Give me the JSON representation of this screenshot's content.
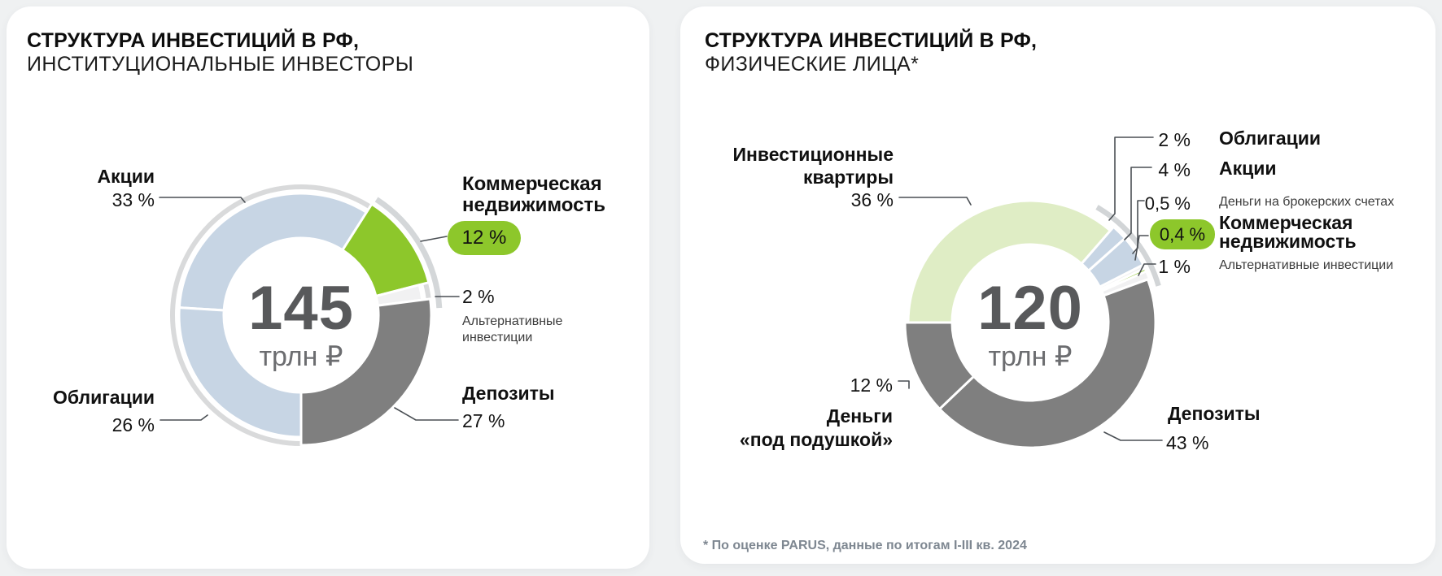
{
  "colors": {
    "background": "#eff1f2",
    "card": "#ffffff",
    "light_blue": "#c7d5e4",
    "green": "#8dc72b",
    "pale_green": "#dfedc5",
    "dark_grey": "#7f7f7f",
    "off_white": "#f1f1f2",
    "ring": "#d9dadb",
    "leader": "#4a4f54",
    "center_number": "#58595b",
    "center_unit": "#6c6d70"
  },
  "left": {
    "title1": "СТРУКТУРА ИНВЕСТИЦИЙ В РФ,",
    "title2": "ИНСТИТУЦИОНАЛЬНЫЕ ИНВЕСТОРЫ",
    "center": {
      "value": "145",
      "unit": "трлн ₽"
    },
    "callouts": {
      "akcii": {
        "name": "Акции",
        "pct": "33 %"
      },
      "kn": {
        "name1": "Коммерческая",
        "name2": "недвижимость",
        "pct": "12 %"
      },
      "alt": {
        "pct": "2 %",
        "name1": "Альтернативные",
        "name2": "инвестиции"
      },
      "depozity": {
        "name": "Депозиты",
        "pct": "27 %"
      },
      "obligacii": {
        "name": "Облигации",
        "pct": "26 %"
      }
    }
  },
  "right": {
    "title1": "СТРУКТУРА ИНВЕСТИЦИЙ В РФ,",
    "title2": "ФИЗИЧЕСКИЕ ЛИЦА*",
    "center": {
      "value": "120",
      "unit": "трлн ₽"
    },
    "callouts": {
      "kvartiry": {
        "name1": "Инвестиционные",
        "name2": "квартиры",
        "pct": "36 %"
      },
      "obligacii": {
        "name": "Облигации",
        "pct": "2 %"
      },
      "akcii": {
        "name": "Акции",
        "pct": "4 %"
      },
      "broker": {
        "name": "Деньги на брокерских счетах",
        "pct": "0,5 %"
      },
      "kn": {
        "name1": "Коммерческая",
        "name2": "недвижимость",
        "pct": "0,4 %"
      },
      "alt": {
        "name": "Альтернативные инвестиции",
        "pct": "1 %"
      },
      "depozity": {
        "name": "Депозиты",
        "pct": "43 %"
      },
      "podushka": {
        "name1": "Деньги",
        "name2": "«под подушкой»",
        "pct": "12 %"
      }
    },
    "footnote": "* По оценке PARUS, данные по итогам I-III кв. 2024"
  },
  "chart_data": [
    {
      "type": "pie",
      "variant": "donut",
      "title": "СТРУКТУРА ИНВЕСТИЦИЙ В РФ, ИНСТИТУЦИОНАЛЬНЫЕ ИНВЕСТОРЫ",
      "center_label": "145 трлн ₽",
      "total_value": "145 трлн ₽",
      "start_angle_deg": 273.6,
      "clockwise": true,
      "segments": [
        {
          "label": "Акции",
          "pct": 33,
          "color": "#c7d5e4"
        },
        {
          "label": "Коммерческая недвижимость",
          "pct": 12,
          "color": "#8dc72b",
          "highlighted": true
        },
        {
          "label": "Альтернативные инвестиции",
          "pct": 2,
          "color": "#f1f1f2"
        },
        {
          "label": "Депозиты",
          "pct": 27,
          "color": "#7f7f7f"
        },
        {
          "label": "Облигации",
          "pct": 26,
          "color": "#c7d5e4"
        }
      ]
    },
    {
      "type": "pie",
      "variant": "donut",
      "title": "СТРУКТУРА ИНВЕСТИЦИЙ В РФ, ФИЗИЧЕСКИЕ ЛИЦА*",
      "center_label": "120 трлн ₽",
      "total_value": "120 трлн ₽",
      "start_angle_deg": 270,
      "clockwise": true,
      "footnote": "* По оценке PARUS, данные по итогам I-III кв. 2024",
      "segments": [
        {
          "label": "Инвестиционные квартиры",
          "pct": 36,
          "color": "#dfedc5"
        },
        {
          "label": "Облигации",
          "pct": 2,
          "color": "#c7d5e4"
        },
        {
          "label": "Акции",
          "pct": 4,
          "color": "#c7d5e4"
        },
        {
          "label": "Деньги на брокерских счетах",
          "pct": 0.5,
          "color": "#f1f1f2"
        },
        {
          "label": "Коммерческая недвижимость",
          "pct": 0.4,
          "color": "#8dc72b",
          "highlighted": true
        },
        {
          "label": "Альтернативные инвестиции",
          "pct": 1,
          "color": "#f1f1f2"
        },
        {
          "label": "Депозиты",
          "pct": 43,
          "color": "#7f7f7f"
        },
        {
          "label": "Деньги «под подушкой»",
          "pct": 12,
          "color": "#7f7f7f"
        }
      ]
    }
  ]
}
